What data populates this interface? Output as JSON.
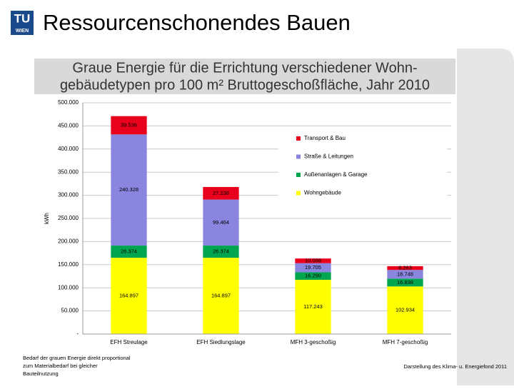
{
  "header": {
    "logo_top": "TU",
    "logo_bottom": "WIEN",
    "title": "Ressourcenschonendes Bauen"
  },
  "footer": {
    "note_lines": [
      "Bedarf der grauen Energie direkt proportional",
      "zum Materialbedarf bei gleicher",
      "Bauteilnutzung"
    ],
    "source": "Darstellung des Klima- u. Energiefond 2011"
  },
  "chart_data": {
    "type": "stacked_bar",
    "title_lines": [
      "Graue Energie für die Errichtung verschiedener Wohn-",
      "gebäudetypen pro 100 m² Bruttogeschoßfläche, Jahr 2010"
    ],
    "y_label": "kWh",
    "categories": [
      "EFH Streulage",
      "EFH Siedlungslage",
      "MFH 3-geschoßig",
      "MFH 7-geschoßig"
    ],
    "series": [
      {
        "name": "Wohngebäude",
        "color": "#ffff00",
        "values": [
          164897,
          164897,
          117243,
          102934
        ],
        "value_labels": [
          "164.897",
          "164.897",
          "117.243",
          "102.934"
        ]
      },
      {
        "name": "Außenanlagen & Garage",
        "color": "#00a550",
        "values": [
          26374,
          26374,
          16290,
          16838
        ],
        "value_labels": [
          "26.374",
          "26.374",
          "16.290",
          "16.838"
        ]
      },
      {
        "name": "Straße & Leitungen",
        "color": "#8a86e0",
        "values": [
          240328,
          99464,
          19705,
          18748
        ],
        "value_labels": [
          "240.328",
          "99.464",
          "19.705",
          "18.748"
        ]
      },
      {
        "name": "Transport & Bau",
        "color": "#e8001c",
        "values": [
          39536,
          27238,
          10098,
          8263
        ],
        "value_labels": [
          "39.536",
          "27.238",
          "10.098",
          "8.263"
        ]
      }
    ],
    "ylim": [
      0,
      500000
    ],
    "yticks": [
      {
        "value": 0,
        "label": "-"
      },
      {
        "value": 50000,
        "label": "50.000"
      },
      {
        "value": 100000,
        "label": "100.000"
      },
      {
        "value": 150000,
        "label": "150.000"
      },
      {
        "value": 200000,
        "label": "200.000"
      },
      {
        "value": 250000,
        "label": "250.000"
      },
      {
        "value": 300000,
        "label": "300.000"
      },
      {
        "value": 350000,
        "label": "350.000"
      },
      {
        "value": 400000,
        "label": "400.000"
      },
      {
        "value": 450000,
        "label": "450.000"
      },
      {
        "value": 500000,
        "label": "500.000"
      }
    ],
    "grid": true
  }
}
